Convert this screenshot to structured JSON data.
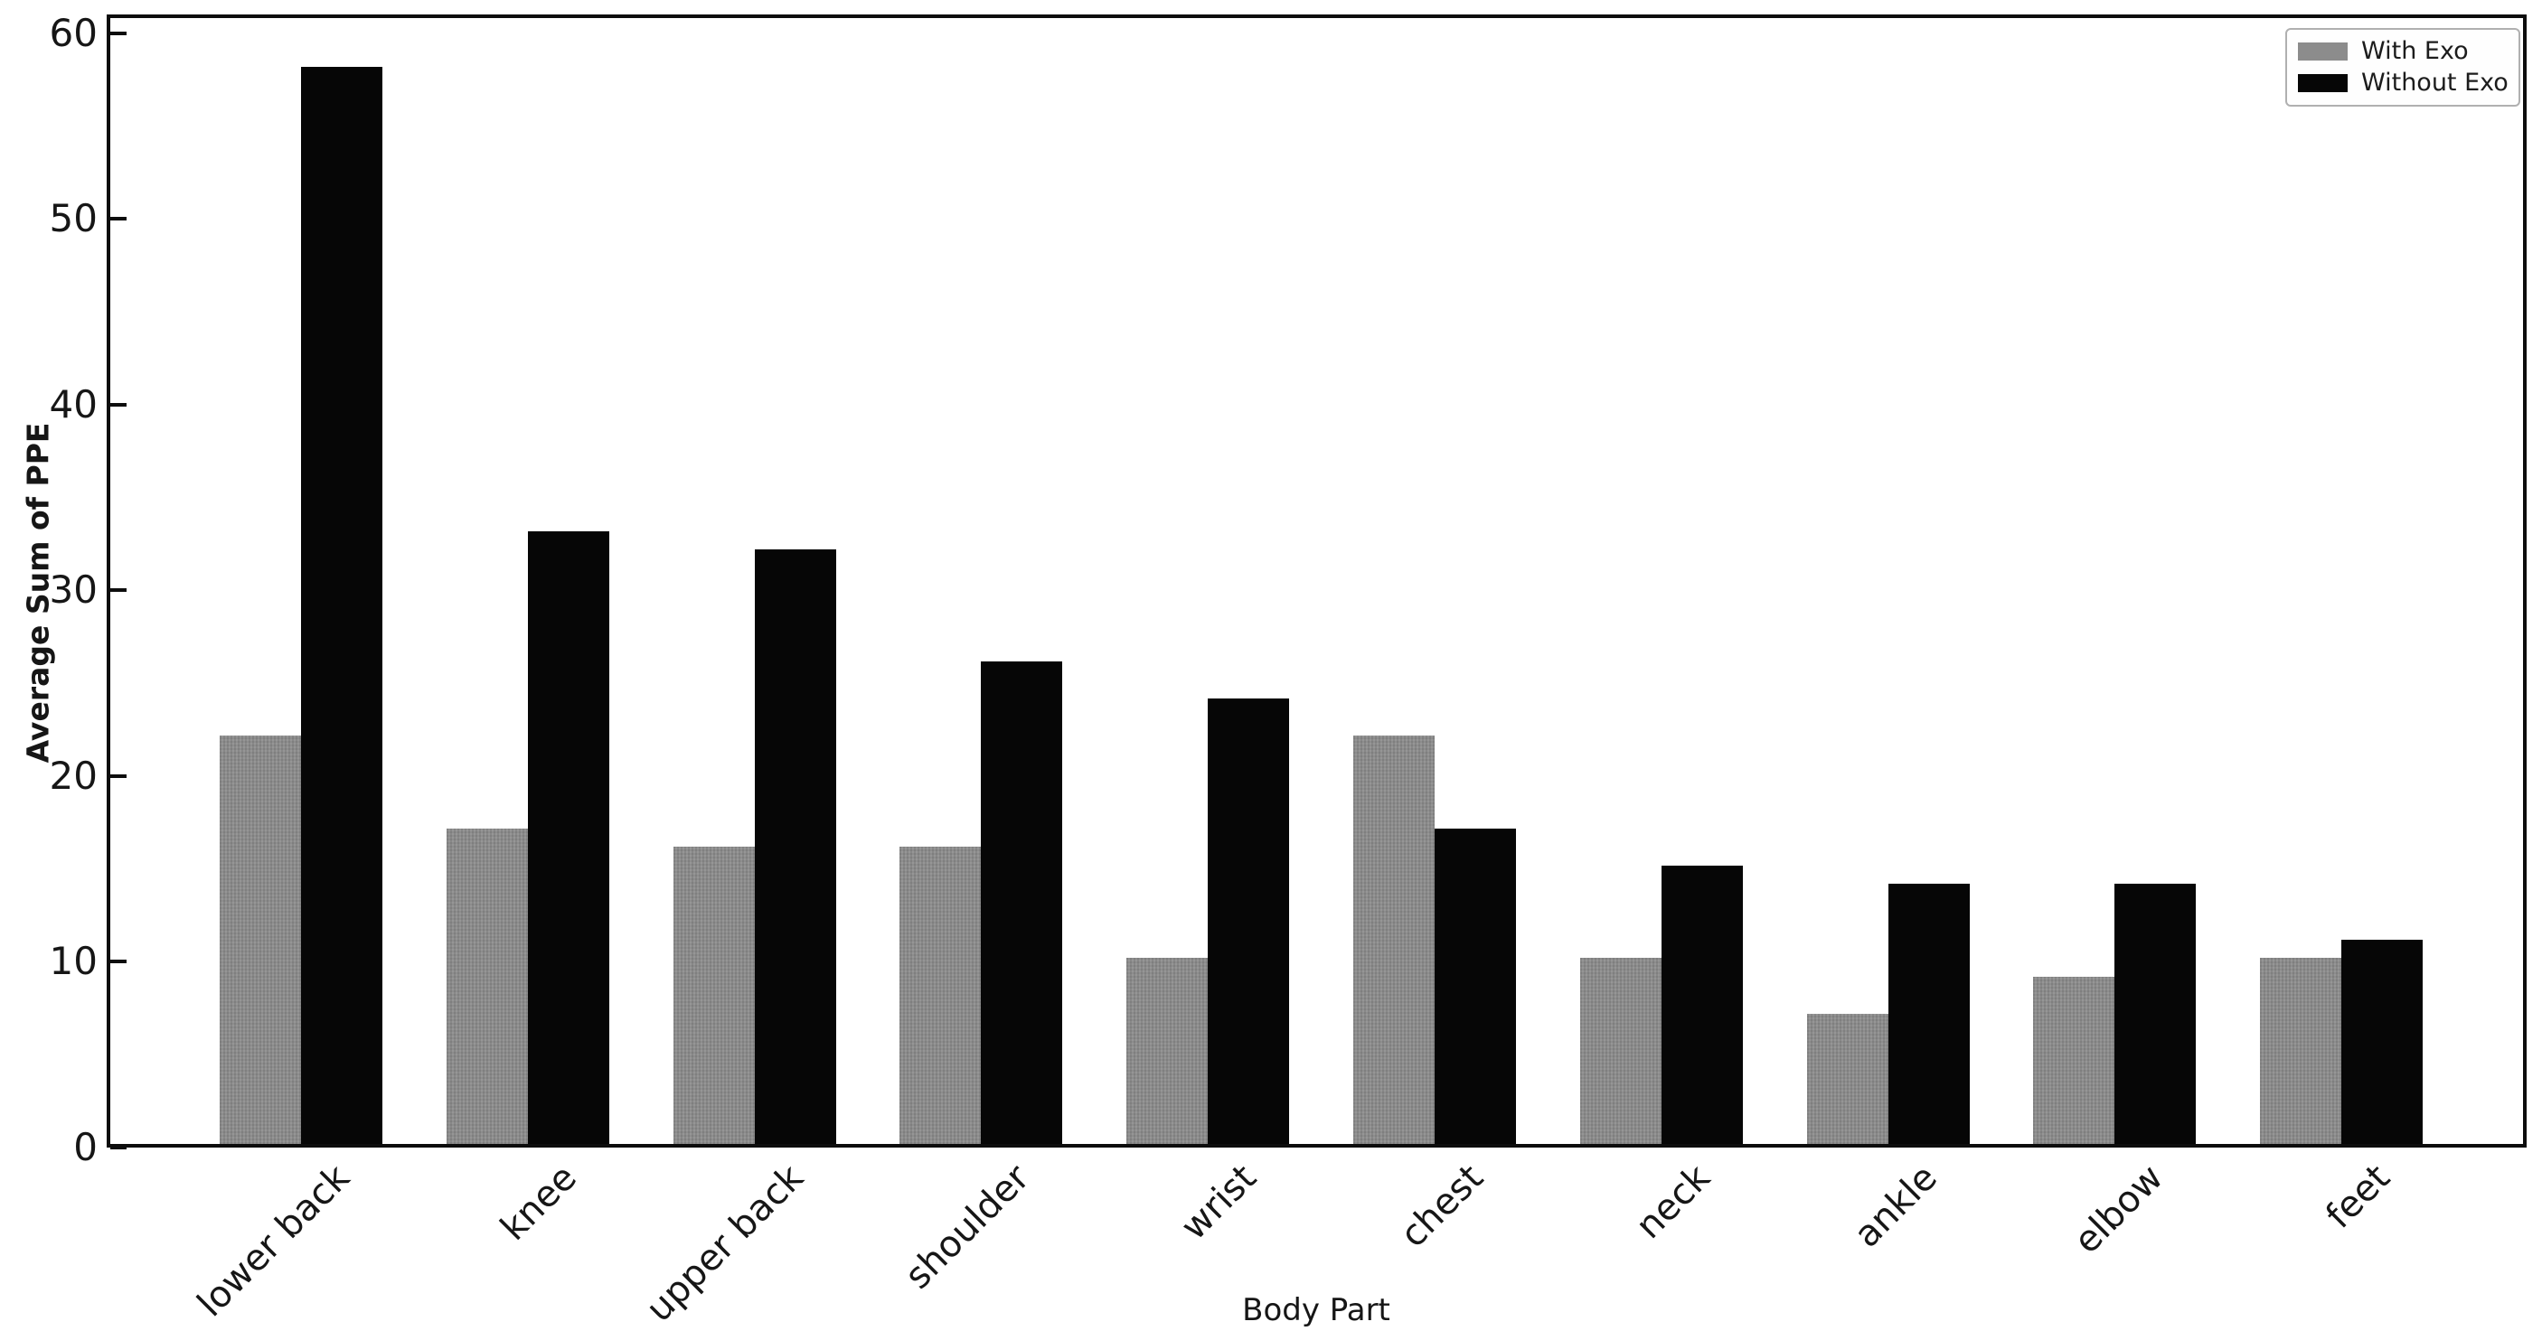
{
  "chart_data": {
    "type": "bar",
    "title": "",
    "xlabel": "Body Part",
    "ylabel": "Average Sum of PPE",
    "categories": [
      "lower back",
      "knee",
      "upper back",
      "shoulder",
      "wrist",
      "chest",
      "neck",
      "ankle",
      "elbow",
      "feet"
    ],
    "series": [
      {
        "name": "With Exo",
        "color": "#8c8c8c",
        "values": [
          22,
          17,
          16,
          16,
          10,
          22,
          10,
          7,
          9,
          10
        ]
      },
      {
        "name": "Without Exo",
        "color": "#060606",
        "values": [
          58,
          33,
          32,
          26,
          24,
          17,
          15,
          14,
          14,
          11
        ]
      }
    ],
    "y_ticks": [
      0,
      10,
      20,
      30,
      40,
      50,
      60
    ],
    "ylim": [
      0,
      61
    ],
    "legend_position": "upper right",
    "grid": false,
    "axis_color": "#0d0d0d",
    "text_color": "#161616",
    "legend_border_color": "#b0b0b0"
  }
}
